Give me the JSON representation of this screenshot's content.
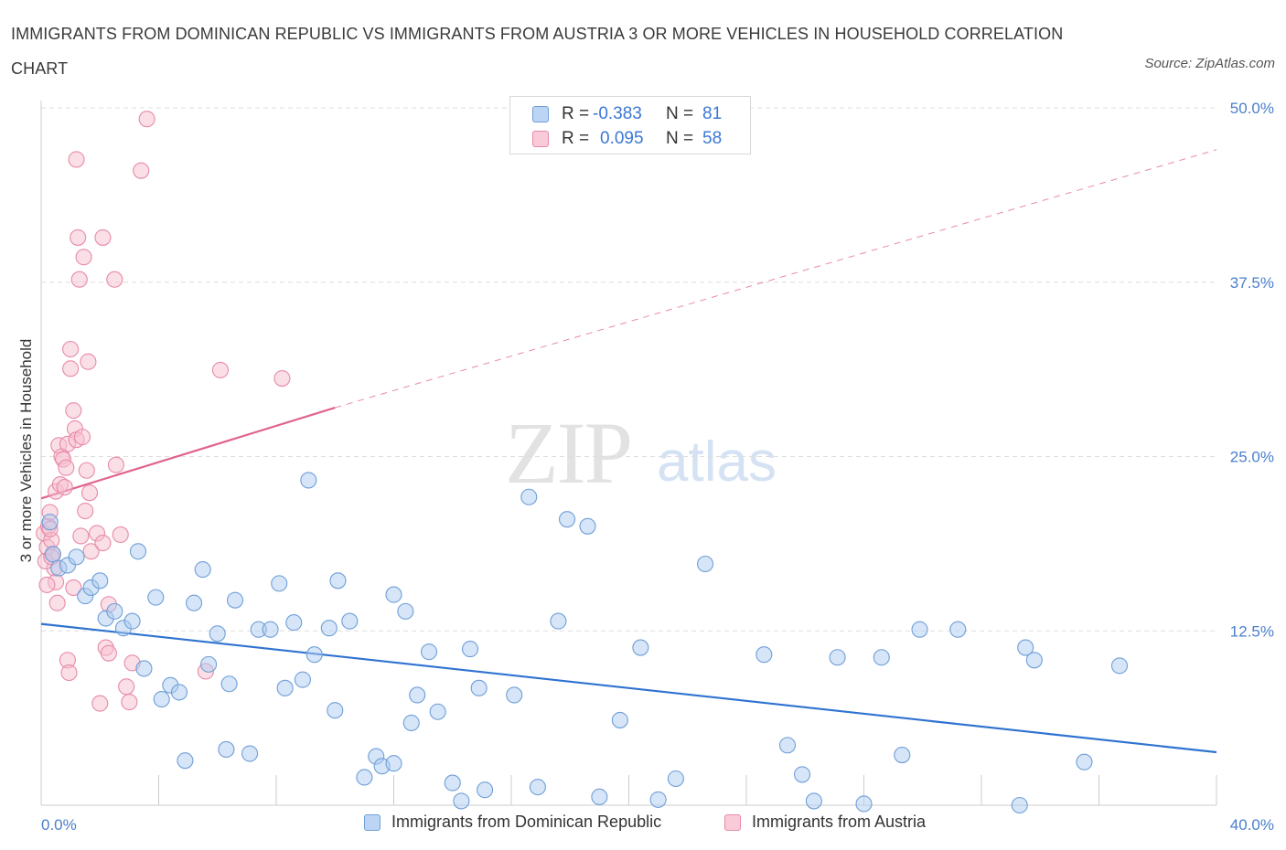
{
  "title": "IMMIGRANTS FROM DOMINICAN REPUBLIC VS IMMIGRANTS FROM AUSTRIA 3 OR MORE VEHICLES IN HOUSEHOLD CORRELATION CHART",
  "source": "Source: ZipAtlas.com",
  "watermark": {
    "zip": "ZIP",
    "atlas": "atlas"
  },
  "legend": {
    "r_label": "R =",
    "n_label": "N =",
    "series": [
      {
        "r": "-0.383",
        "n": "81"
      },
      {
        "r": "0.095",
        "n": "58"
      }
    ]
  },
  "colors": {
    "blue_fill": "#aecbf0",
    "blue_stroke": "#6f9fd8",
    "blue_line": "#2f73d0",
    "pink_fill": "#f5bfd0",
    "pink_stroke": "#e88aa8",
    "pink_line": "#e0648e",
    "grid": "#dddddd",
    "tick_text": "#4a7fcc"
  },
  "chart_data": {
    "type": "scatter",
    "title": "IMMIGRANTS FROM DOMINICAN REPUBLIC VS IMMIGRANTS FROM AUSTRIA 3 OR MORE VEHICLES IN HOUSEHOLD CORRELATION CHART",
    "xlabel": "",
    "ylabel": "3 or more Vehicles in Household",
    "xlim": [
      0,
      40
    ],
    "ylim": [
      0,
      50
    ],
    "x_tick_labels": [
      "0.0%",
      "40.0%"
    ],
    "y_ticks": [
      12.5,
      25.0,
      37.5,
      50.0
    ],
    "y_tick_labels": [
      "12.5%",
      "25.0%",
      "37.5%",
      "50.0%"
    ],
    "grid": true,
    "legend_position": "bottom",
    "series": [
      {
        "name": "Immigrants from Dominican Republic",
        "r": -0.383,
        "n": 81,
        "trend": {
          "x": [
            0,
            40
          ],
          "y": [
            13.0,
            3.8
          ],
          "dashed_beyond": null
        },
        "points": [
          [
            0.3,
            20.3
          ],
          [
            0.4,
            18.0
          ],
          [
            0.6,
            17.0
          ],
          [
            0.9,
            17.2
          ],
          [
            1.2,
            17.8
          ],
          [
            1.5,
            15.0
          ],
          [
            1.7,
            15.6
          ],
          [
            2.0,
            16.1
          ],
          [
            2.2,
            13.4
          ],
          [
            2.5,
            13.9
          ],
          [
            2.8,
            12.7
          ],
          [
            3.1,
            13.2
          ],
          [
            3.3,
            18.2
          ],
          [
            3.5,
            9.8
          ],
          [
            3.9,
            14.9
          ],
          [
            4.1,
            7.6
          ],
          [
            4.4,
            8.6
          ],
          [
            4.7,
            8.1
          ],
          [
            4.9,
            3.2
          ],
          [
            5.2,
            14.5
          ],
          [
            5.5,
            16.9
          ],
          [
            5.7,
            10.1
          ],
          [
            6.0,
            12.3
          ],
          [
            6.4,
            8.7
          ],
          [
            6.3,
            4.0
          ],
          [
            6.6,
            14.7
          ],
          [
            7.1,
            3.7
          ],
          [
            7.4,
            12.6
          ],
          [
            7.8,
            12.6
          ],
          [
            8.1,
            15.9
          ],
          [
            8.3,
            8.4
          ],
          [
            8.6,
            13.1
          ],
          [
            8.9,
            9.0
          ],
          [
            9.1,
            23.3
          ],
          [
            9.3,
            10.8
          ],
          [
            9.8,
            12.7
          ],
          [
            10.0,
            6.8
          ],
          [
            10.1,
            16.1
          ],
          [
            10.5,
            13.2
          ],
          [
            11.0,
            2.0
          ],
          [
            11.4,
            3.5
          ],
          [
            11.6,
            2.8
          ],
          [
            12.0,
            15.1
          ],
          [
            12.4,
            13.9
          ],
          [
            12.0,
            3.0
          ],
          [
            12.6,
            5.9
          ],
          [
            12.8,
            7.9
          ],
          [
            13.2,
            11.0
          ],
          [
            13.5,
            6.7
          ],
          [
            14.0,
            1.6
          ],
          [
            14.3,
            0.3
          ],
          [
            14.6,
            11.2
          ],
          [
            14.9,
            8.4
          ],
          [
            15.1,
            1.1
          ],
          [
            16.1,
            7.9
          ],
          [
            16.6,
            22.1
          ],
          [
            16.9,
            1.3
          ],
          [
            17.6,
            13.2
          ],
          [
            17.9,
            20.5
          ],
          [
            18.6,
            20.0
          ],
          [
            19.0,
            0.6
          ],
          [
            19.7,
            6.1
          ],
          [
            20.4,
            11.3
          ],
          [
            21.0,
            0.4
          ],
          [
            21.6,
            1.9
          ],
          [
            22.6,
            17.3
          ],
          [
            24.6,
            10.8
          ],
          [
            25.4,
            4.3
          ],
          [
            25.9,
            2.2
          ],
          [
            26.3,
            0.3
          ],
          [
            27.1,
            10.6
          ],
          [
            28.0,
            0.1
          ],
          [
            28.6,
            10.6
          ],
          [
            29.3,
            3.6
          ],
          [
            29.9,
            12.6
          ],
          [
            31.2,
            12.6
          ],
          [
            33.3,
            0.0
          ],
          [
            33.5,
            11.3
          ],
          [
            33.8,
            10.4
          ],
          [
            35.5,
            3.1
          ],
          [
            36.7,
            10.0
          ]
        ]
      },
      {
        "name": "Immigrants from Austria",
        "r": 0.095,
        "n": 58,
        "trend": {
          "x": [
            0,
            10
          ],
          "y": [
            22.0,
            28.5
          ],
          "dashed_to": [
            40,
            47.0
          ]
        },
        "points": [
          [
            0.1,
            19.5
          ],
          [
            0.2,
            18.5
          ],
          [
            0.25,
            20.0
          ],
          [
            0.3,
            21.0
          ],
          [
            0.35,
            19.0
          ],
          [
            0.4,
            18.0
          ],
          [
            0.45,
            17.0
          ],
          [
            0.5,
            16.0
          ],
          [
            0.5,
            22.5
          ],
          [
            0.55,
            14.5
          ],
          [
            0.6,
            25.8
          ],
          [
            0.65,
            23.0
          ],
          [
            0.7,
            25.0
          ],
          [
            0.75,
            24.8
          ],
          [
            0.8,
            22.8
          ],
          [
            0.85,
            24.2
          ],
          [
            0.9,
            25.9
          ],
          [
            0.9,
            10.4
          ],
          [
            0.95,
            9.5
          ],
          [
            1.0,
            31.3
          ],
          [
            1.0,
            32.7
          ],
          [
            1.1,
            15.6
          ],
          [
            1.1,
            28.3
          ],
          [
            1.15,
            27.0
          ],
          [
            1.2,
            26.2
          ],
          [
            1.2,
            46.3
          ],
          [
            1.25,
            40.7
          ],
          [
            1.3,
            37.7
          ],
          [
            1.35,
            19.3
          ],
          [
            1.4,
            26.4
          ],
          [
            1.45,
            39.3
          ],
          [
            1.5,
            21.1
          ],
          [
            1.55,
            24.0
          ],
          [
            1.6,
            31.8
          ],
          [
            1.65,
            22.4
          ],
          [
            1.7,
            18.2
          ],
          [
            1.9,
            19.5
          ],
          [
            2.0,
            7.3
          ],
          [
            2.1,
            18.8
          ],
          [
            2.1,
            40.7
          ],
          [
            2.2,
            11.3
          ],
          [
            2.3,
            14.4
          ],
          [
            2.3,
            10.9
          ],
          [
            2.5,
            37.7
          ],
          [
            2.55,
            24.4
          ],
          [
            2.7,
            19.4
          ],
          [
            2.9,
            8.5
          ],
          [
            3.0,
            7.4
          ],
          [
            3.1,
            10.2
          ],
          [
            3.4,
            45.5
          ],
          [
            3.6,
            49.2
          ],
          [
            5.6,
            9.6
          ],
          [
            6.1,
            31.2
          ],
          [
            8.2,
            30.6
          ],
          [
            0.15,
            17.5
          ],
          [
            0.2,
            15.8
          ],
          [
            0.3,
            19.8
          ],
          [
            0.35,
            17.8
          ]
        ]
      }
    ]
  },
  "legend_bottom": {
    "items": [
      "Immigrants from Dominican Republic",
      "Immigrants from Austria"
    ]
  }
}
